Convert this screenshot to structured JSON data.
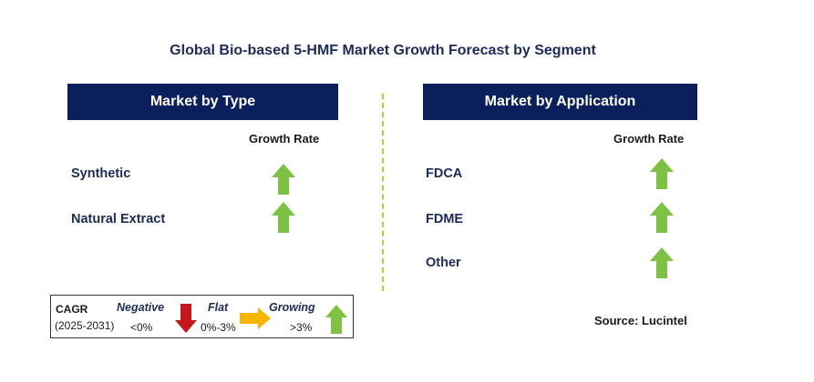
{
  "title": "Global Bio-based 5-HMF Market Growth Forecast by Segment",
  "left_panel": {
    "header": "Market by Type",
    "growth_rate_label": "Growth Rate",
    "rows": [
      {
        "label": "Synthetic",
        "trend": "growing"
      },
      {
        "label": "Natural Extract",
        "trend": "growing"
      }
    ]
  },
  "right_panel": {
    "header": "Market by Application",
    "growth_rate_label": "Growth Rate",
    "rows": [
      {
        "label": "FDCA",
        "trend": "growing"
      },
      {
        "label": "FDME",
        "trend": "growing"
      },
      {
        "label": "Other",
        "trend": "growing"
      }
    ]
  },
  "legend": {
    "cagr_label": "CAGR",
    "period": "(2025-2031)",
    "negative_label": "Negative",
    "negative_range": "<0%",
    "flat_label": "Flat",
    "flat_range": "0%-3%",
    "growing_label": "Growing",
    "growing_range": ">3%"
  },
  "source": "Source: Lucintel",
  "colors": {
    "header_bg": "#0b1f5c",
    "arrow_green": "#7dc242",
    "arrow_red": "#c8161d",
    "arrow_yellow": "#f7b500",
    "divider": "#f0b429"
  }
}
